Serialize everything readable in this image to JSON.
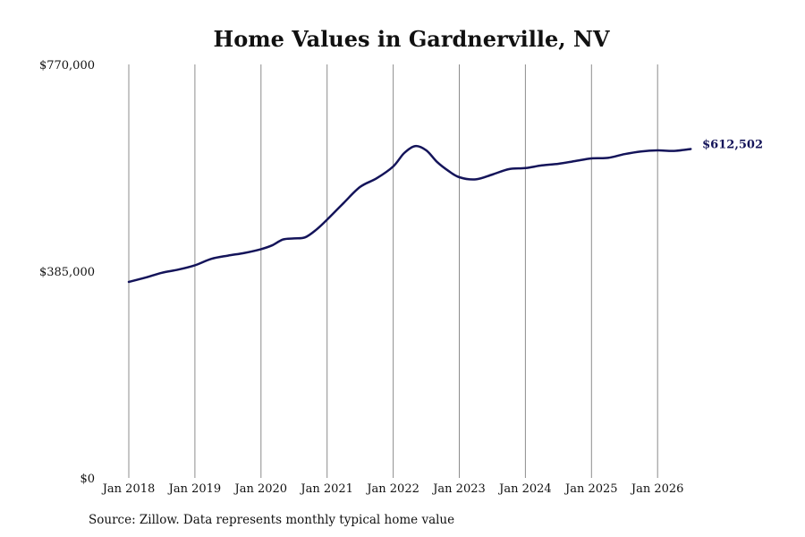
{
  "chart_data": {
    "type": "line",
    "title": "Home Values in Gardnerville, NV",
    "xlabel": "",
    "ylabel": "",
    "ylim": [
      0,
      770000
    ],
    "xlim": [
      "2018-01",
      "2026-07"
    ],
    "y_ticks": [
      {
        "value": 0,
        "label": "$0"
      },
      {
        "value": 385000,
        "label": "$385,000"
      },
      {
        "value": 770000,
        "label": "$770,000"
      }
    ],
    "x_ticks": [
      {
        "date": "2018-01",
        "label": "Jan 2018"
      },
      {
        "date": "2019-01",
        "label": "Jan 2019"
      },
      {
        "date": "2020-01",
        "label": "Jan 2020"
      },
      {
        "date": "2021-01",
        "label": "Jan 2021"
      },
      {
        "date": "2022-01",
        "label": "Jan 2022"
      },
      {
        "date": "2023-01",
        "label": "Jan 2023"
      },
      {
        "date": "2024-01",
        "label": "Jan 2024"
      },
      {
        "date": "2025-01",
        "label": "Jan 2025"
      },
      {
        "date": "2026-01",
        "label": "Jan 2026"
      }
    ],
    "grid": {
      "vertical": true,
      "horizontal": false
    },
    "series": [
      {
        "color": "#14145a",
        "points": [
          [
            "2018-01",
            365000
          ],
          [
            "2018-04",
            373000
          ],
          [
            "2018-07",
            382000
          ],
          [
            "2018-10",
            388000
          ],
          [
            "2019-01",
            396000
          ],
          [
            "2019-04",
            408000
          ],
          [
            "2019-07",
            414000
          ],
          [
            "2019-10",
            419000
          ],
          [
            "2020-01",
            426000
          ],
          [
            "2020-03",
            433000
          ],
          [
            "2020-05",
            444000
          ],
          [
            "2020-07",
            446000
          ],
          [
            "2020-09",
            448000
          ],
          [
            "2020-11",
            462000
          ],
          [
            "2021-01",
            481000
          ],
          [
            "2021-04",
            512000
          ],
          [
            "2021-07",
            542000
          ],
          [
            "2021-10",
            558000
          ],
          [
            "2022-01",
            580000
          ],
          [
            "2022-03",
            605000
          ],
          [
            "2022-05",
            618000
          ],
          [
            "2022-07",
            610000
          ],
          [
            "2022-09",
            588000
          ],
          [
            "2022-11",
            572000
          ],
          [
            "2023-01",
            560000
          ],
          [
            "2023-04",
            556000
          ],
          [
            "2023-07",
            565000
          ],
          [
            "2023-10",
            575000
          ],
          [
            "2024-01",
            577000
          ],
          [
            "2024-04",
            582000
          ],
          [
            "2024-07",
            585000
          ],
          [
            "2024-10",
            590000
          ],
          [
            "2025-01",
            595000
          ],
          [
            "2025-04",
            596000
          ],
          [
            "2025-07",
            603000
          ],
          [
            "2025-10",
            608000
          ],
          [
            "2026-01",
            610000
          ],
          [
            "2026-04",
            609000
          ],
          [
            "2026-07",
            612502
          ]
        ]
      }
    ],
    "end_label": "$612,502",
    "source": "Source: Zillow. Data represents monthly typical home value"
  }
}
